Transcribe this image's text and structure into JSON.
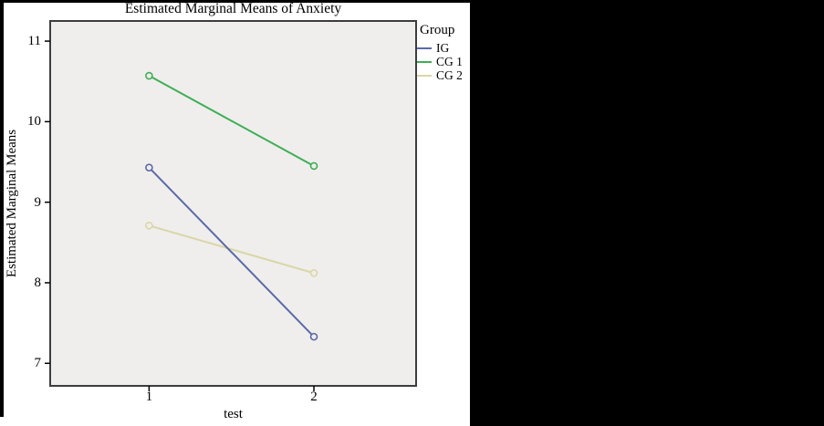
{
  "chart_data": {
    "type": "line",
    "title": "Estimated Marginal Means of Anxiety",
    "xlabel": "test",
    "ylabel": "Estimated Marginal Means",
    "legend_title": "Group",
    "legend_position": "right",
    "categories": [
      "1",
      "2"
    ],
    "x": [
      1,
      2
    ],
    "series": [
      {
        "name": "IG",
        "color": "#5b69a8",
        "values": [
          9.43,
          7.33
        ]
      },
      {
        "name": "CG 1",
        "color": "#3fae56",
        "values": [
          10.57,
          9.45
        ]
      },
      {
        "name": "CG 2",
        "color": "#dad6a8",
        "values": [
          8.71,
          8.12
        ]
      }
    ],
    "yticks": [
      7,
      8,
      9,
      10,
      11
    ],
    "xlim": [
      0.4,
      2.62
    ],
    "ylim": [
      6.72,
      11.25
    ],
    "grid": false,
    "marker": "open-circle",
    "plot_bg": "#efeeec",
    "border_color": "#3d3d3d",
    "text_color": "#000000",
    "surround": {
      "canvas_bg": "#ffffff",
      "masked_right_bg": "#000000"
    }
  }
}
